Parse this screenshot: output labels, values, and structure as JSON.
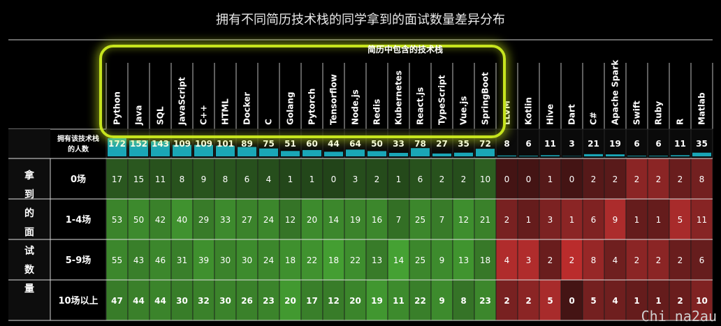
{
  "title": "拥有不同简历技术栈的同学拿到的面试数量差异分布",
  "watermark": "Chi na2au",
  "chart_data": {
    "type": "table",
    "group_label": "简历中包含的技术栈",
    "highlighted_count": 18,
    "row_axis_label": "拿到的面试数量",
    "count_row_label": [
      "拥有该技术栈",
      "的人数"
    ],
    "categories": [
      "Python",
      "Java",
      "SQL",
      "JavaScript",
      "C++",
      "HTML",
      "Docker",
      "C",
      "Golang",
      "Pytorch",
      "Tensorflow",
      "Node.js",
      "Redis",
      "Kubernetes",
      "React.js",
      "TypeScript",
      "Vue.js",
      "SpringBoot",
      "LLVM",
      "Kotlin",
      "Hive",
      "Dart",
      "C#",
      "Apache Spark",
      "Swift",
      "Ruby",
      "R",
      "Matlab"
    ],
    "counts": [
      172,
      152,
      143,
      109,
      109,
      101,
      89,
      75,
      51,
      60,
      44,
      64,
      50,
      33,
      78,
      27,
      35,
      72,
      8,
      6,
      11,
      3,
      21,
      19,
      6,
      6,
      11,
      35
    ],
    "rows": [
      {
        "label": "0场",
        "values": [
          17,
          15,
          11,
          8,
          9,
          8,
          6,
          4,
          1,
          1,
          0,
          3,
          2,
          1,
          6,
          2,
          2,
          10,
          0,
          0,
          1,
          0,
          2,
          2,
          2,
          2,
          2,
          8
        ]
      },
      {
        "label": "1-4场",
        "values": [
          53,
          50,
          42,
          40,
          29,
          33,
          27,
          24,
          12,
          20,
          14,
          19,
          16,
          7,
          25,
          7,
          12,
          21,
          2,
          1,
          3,
          1,
          6,
          9,
          1,
          1,
          5,
          11
        ]
      },
      {
        "label": "5-9场",
        "values": [
          55,
          43,
          46,
          31,
          39,
          30,
          30,
          24,
          18,
          22,
          18,
          22,
          13,
          14,
          25,
          9,
          13,
          18,
          4,
          3,
          2,
          2,
          8,
          4,
          2,
          2,
          2,
          6
        ]
      },
      {
        "label": "10场以上",
        "values": [
          47,
          44,
          44,
          30,
          32,
          30,
          26,
          23,
          20,
          17,
          12,
          20,
          19,
          11,
          22,
          9,
          8,
          23,
          2,
          2,
          5,
          0,
          5,
          4,
          1,
          1,
          2,
          10
        ]
      }
    ],
    "colors": {
      "green": "#5fc24a",
      "red": "#c83a3a",
      "bar": "#1aa6b7",
      "highlight": "#c6e41e"
    }
  }
}
